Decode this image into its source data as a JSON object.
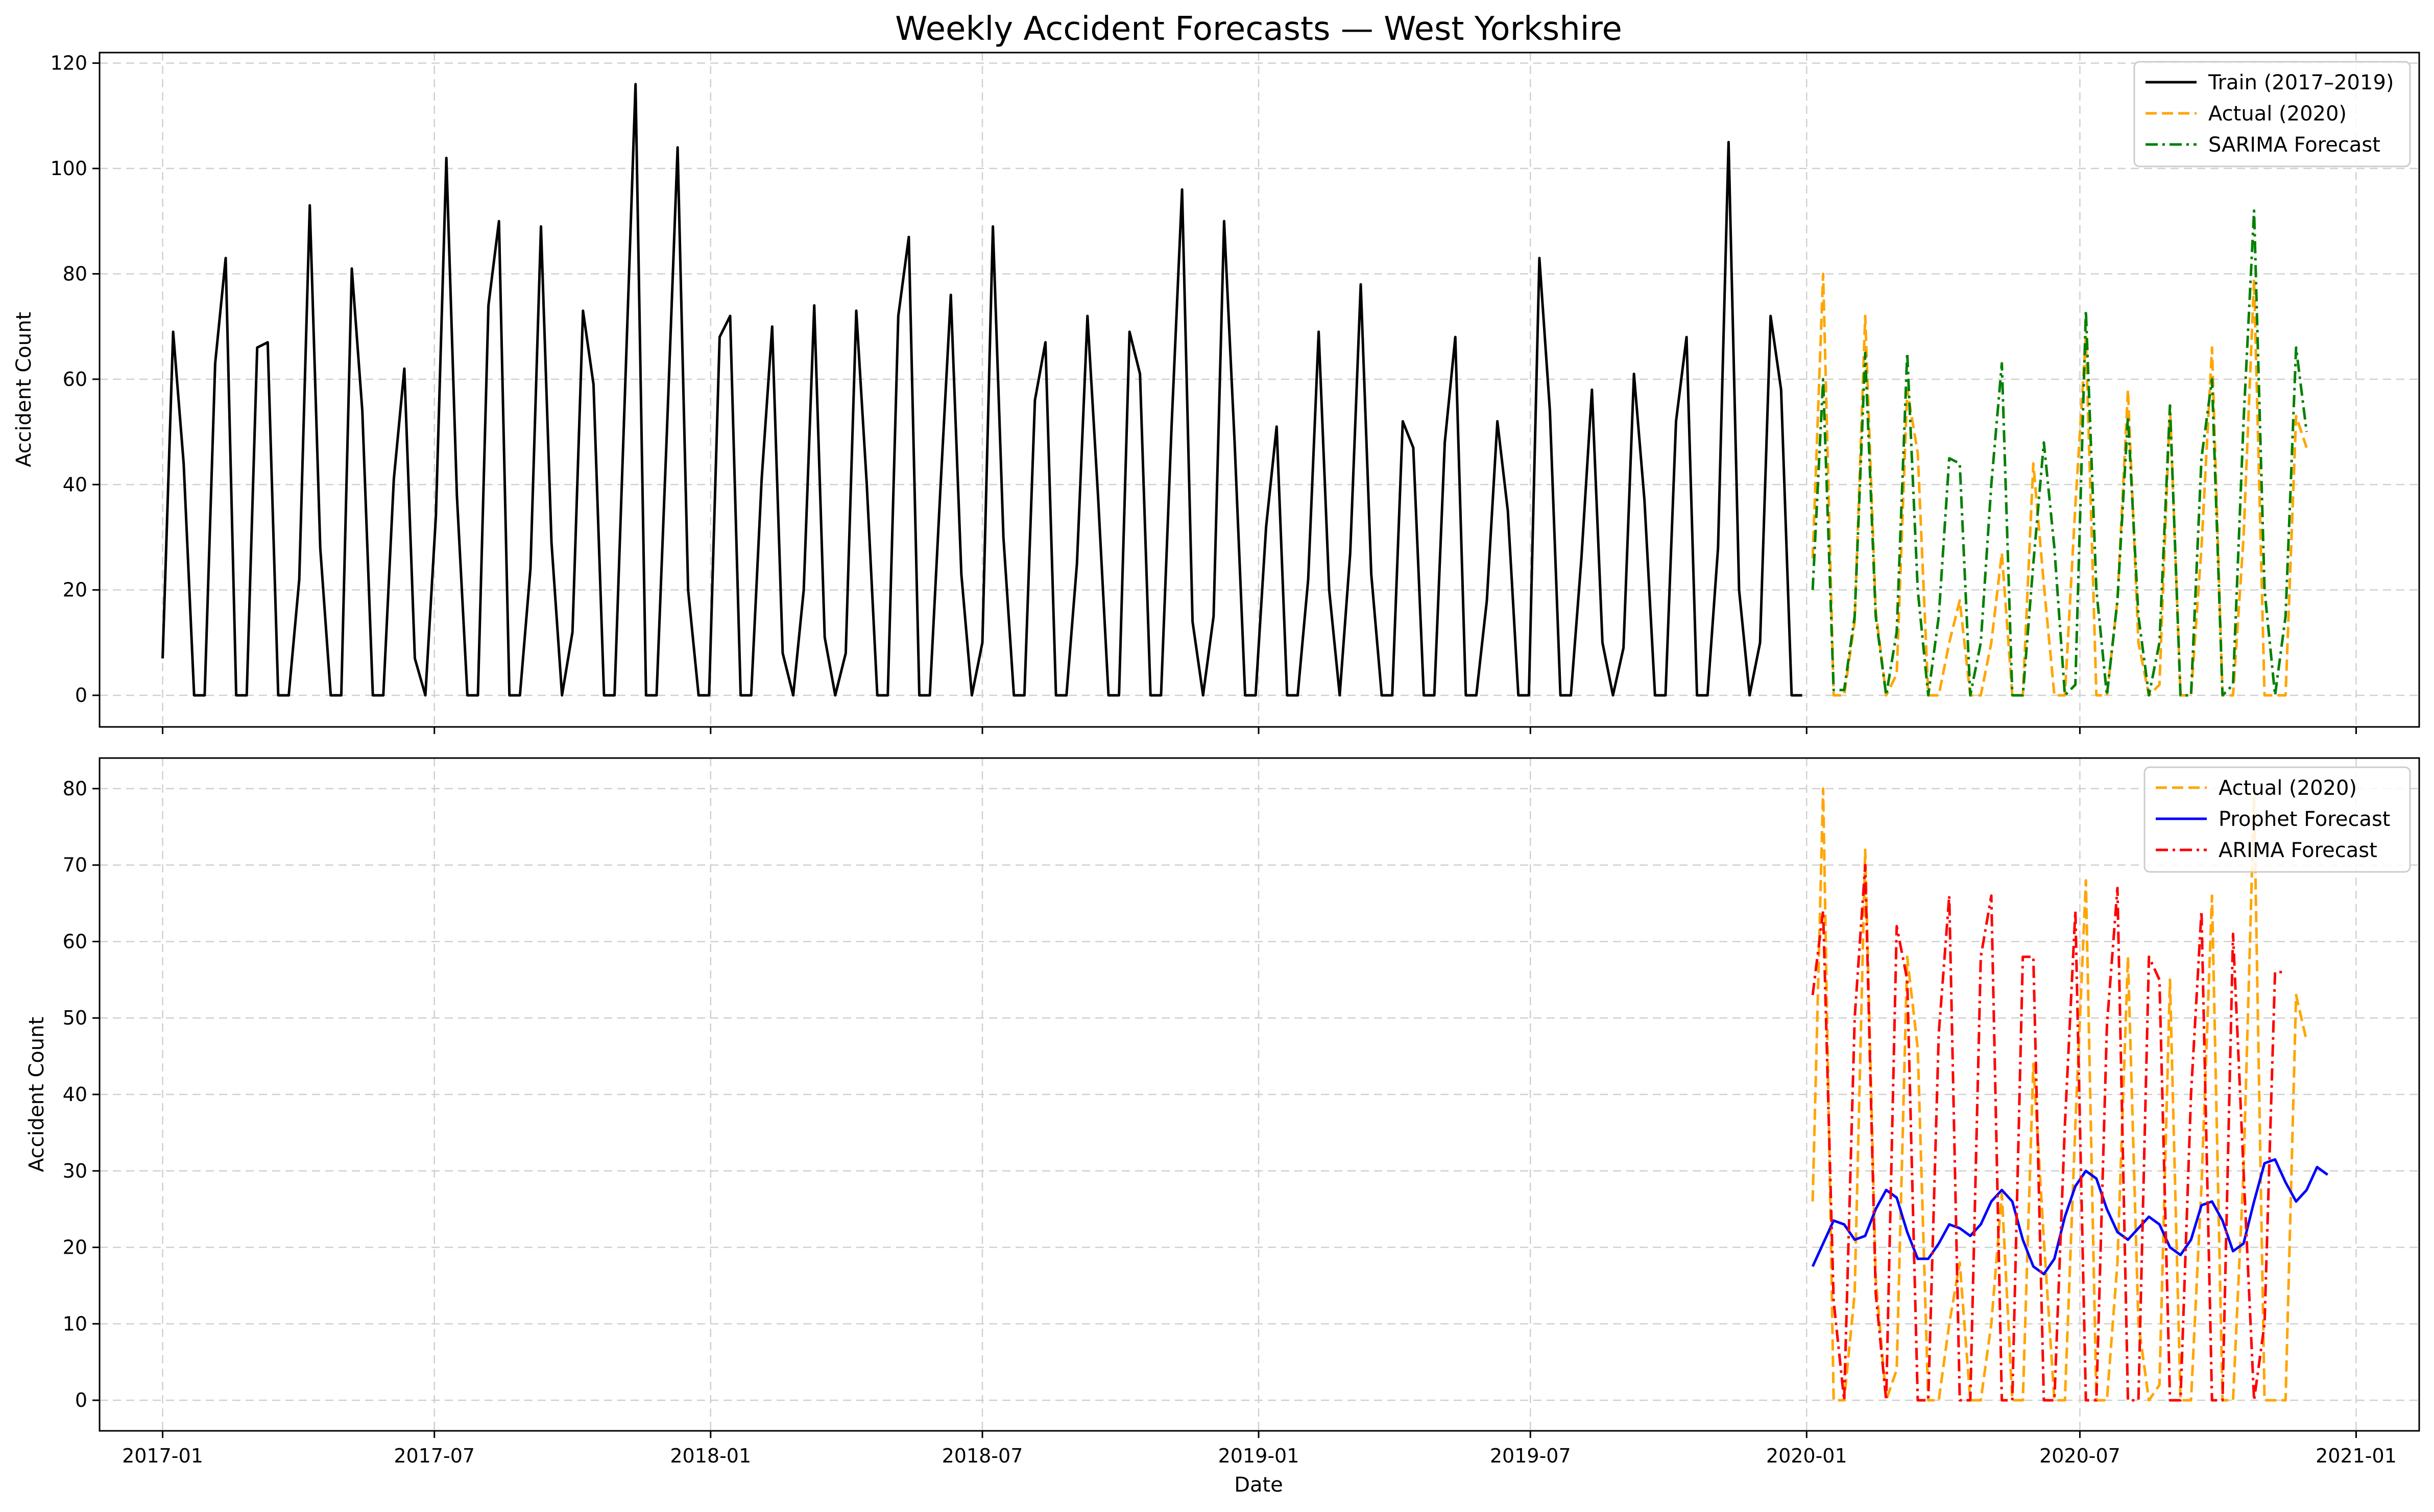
{
  "chart_data": {
    "title": "Weekly Accident Forecasts — West Yorkshire",
    "xlabel": "Date",
    "x_ticks": [
      "2017-01",
      "2017-07",
      "2018-01",
      "2018-07",
      "2019-01",
      "2019-07",
      "2020-01",
      "2020-07",
      "2021-01"
    ],
    "x_tick_dates": [
      "2017-01-01",
      "2017-07-01",
      "2018-01-01",
      "2018-07-01",
      "2019-01-01",
      "2019-07-01",
      "2020-01-01",
      "2020-07-01",
      "2021-01-01"
    ],
    "xlim": [
      "2016-11-20",
      "2021-02-12"
    ],
    "grid": true,
    "panels": [
      {
        "type": "line",
        "ylabel": "Accident Count",
        "ylim": [
          -6,
          122
        ],
        "y_ticks": [
          0,
          20,
          40,
          60,
          80,
          100,
          120
        ],
        "legend_position": "top-right",
        "series": [
          {
            "name": "Train (2017–2019)",
            "color": "#000000",
            "style": "solid",
            "start": "2017-01-01",
            "step_days": 7,
            "values": [
              7,
              69,
              44,
              0,
              0,
              63,
              83,
              0,
              0,
              66,
              67,
              0,
              0,
              22,
              93,
              28,
              0,
              0,
              81,
              54,
              0,
              0,
              41,
              62,
              7,
              0,
              34,
              102,
              38,
              0,
              0,
              74,
              90,
              0,
              0,
              24,
              89,
              29,
              0,
              12,
              73,
              59,
              0,
              0,
              58,
              116,
              0,
              0,
              51,
              104,
              20,
              0,
              0,
              68,
              72,
              0,
              0,
              41,
              70,
              8,
              0,
              20,
              74,
              11,
              0,
              8,
              73,
              40,
              0,
              0,
              72,
              87,
              0,
              0,
              39,
              76,
              23,
              0,
              10,
              89,
              30,
              0,
              0,
              56,
              67,
              0,
              0,
              25,
              72,
              38,
              0,
              0,
              69,
              61,
              0,
              0,
              51,
              96,
              14,
              0,
              15,
              90,
              48,
              0,
              0,
              32,
              51,
              0,
              0,
              22,
              69,
              20,
              0,
              27,
              78,
              23,
              0,
              0,
              52,
              47,
              0,
              0,
              48,
              68,
              0,
              0,
              18,
              52,
              35,
              0,
              0,
              83,
              54,
              0,
              0,
              26,
              58,
              10,
              0,
              9,
              61,
              37,
              0,
              0,
              52,
              68,
              0,
              0,
              28,
              105,
              20,
              0,
              10,
              72,
              58,
              0,
              0
            ]
          },
          {
            "name": "Actual (2020)",
            "color": "#ffa500",
            "style": "dashed",
            "start": "2020-01-05",
            "step_days": 7,
            "values": [
              26,
              80,
              0,
              0,
              14,
              72,
              16,
              0,
              4,
              58,
              46,
              0,
              0,
              10,
              18,
              0,
              0,
              10,
              27,
              0,
              0,
              44,
              21,
              0,
              0,
              36,
              68,
              0,
              0,
              18,
              58,
              10,
              0,
              2,
              55,
              0,
              0,
              28,
              66,
              0,
              0,
              30,
              79,
              0,
              0,
              0,
              53,
              47
            ]
          },
          {
            "name": "SARIMA Forecast",
            "color": "#008000",
            "style": "dashdot",
            "start": "2020-01-05",
            "step_days": 7,
            "values": [
              20,
              60,
              1,
              1,
              15,
              65,
              15,
              0,
              12,
              65,
              20,
              0,
              15,
              45,
              44,
              0,
              10,
              40,
              63,
              0,
              0,
              25,
              48,
              28,
              0,
              2,
              73,
              20,
              0,
              18,
              53,
              15,
              0,
              10,
              55,
              0,
              0,
              45,
              60,
              0,
              2,
              52,
              92,
              20,
              0,
              15,
              66,
              50
            ]
          }
        ]
      },
      {
        "type": "line",
        "ylabel": "Accident Count",
        "ylim": [
          -4,
          84
        ],
        "y_ticks": [
          0,
          10,
          20,
          30,
          40,
          50,
          60,
          70,
          80
        ],
        "legend_position": "top-right",
        "series": [
          {
            "name": "Actual (2020)",
            "color": "#ffa500",
            "style": "dashed",
            "start": "2020-01-05",
            "step_days": 7,
            "values": [
              26,
              80,
              0,
              0,
              14,
              72,
              16,
              0,
              4,
              58,
              46,
              0,
              0,
              10,
              18,
              0,
              0,
              10,
              27,
              0,
              0,
              44,
              21,
              0,
              0,
              36,
              68,
              0,
              0,
              18,
              58,
              10,
              0,
              2,
              55,
              0,
              0,
              28,
              66,
              0,
              0,
              30,
              79,
              0,
              0,
              0,
              53,
              47
            ]
          },
          {
            "name": "Prophet Forecast",
            "color": "#0000ff",
            "style": "solid",
            "start": "2020-01-05",
            "step_days": 7,
            "values": [
              17.5,
              20.5,
              23.5,
              23,
              21,
              21.5,
              25,
              27.5,
              26.5,
              22,
              18.5,
              18.5,
              20.5,
              23,
              22.5,
              21.5,
              23,
              26,
              27.5,
              26,
              21,
              17.5,
              16.5,
              18.5,
              24,
              28,
              30,
              29,
              25,
              22,
              21,
              22.5,
              24,
              23,
              20,
              19,
              21,
              25.5,
              26,
              23.5,
              19.5,
              20.5,
              26,
              31,
              31.5,
              28.5,
              26,
              27.5,
              30.5,
              29.5
            ]
          },
          {
            "name": "ARIMA Forecast",
            "color": "#ff0000",
            "style": "dashdot",
            "start": "2020-01-05",
            "step_days": 7,
            "values": [
              53,
              64,
              13,
              0,
              50,
              70,
              14,
              0,
              62,
              55,
              0,
              0,
              48,
              66,
              0,
              0,
              58,
              66,
              0,
              0,
              58,
              58,
              0,
              0,
              36,
              64,
              0,
              0,
              49,
              67,
              0,
              0,
              58,
              55,
              0,
              0,
              40,
              64,
              0,
              0,
              61,
              30,
              0,
              10,
              56,
              56
            ]
          }
        ]
      }
    ]
  }
}
